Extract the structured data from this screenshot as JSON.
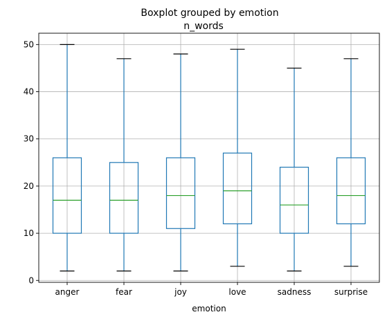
{
  "chart_data": {
    "type": "box",
    "suptitle": "Boxplot grouped by emotion",
    "title": "n_words",
    "xlabel": "emotion",
    "ylabel": "",
    "ylim": [
      -0.4,
      52.4
    ],
    "yticks": [
      0,
      10,
      20,
      30,
      40,
      50
    ],
    "grid": true,
    "colors": {
      "box": "#1f77b4",
      "median": "#2ca02c",
      "cap": "#000000",
      "grid": "#b0b0b0"
    },
    "categories": [
      "anger",
      "fear",
      "joy",
      "love",
      "sadness",
      "surprise"
    ],
    "boxes": [
      {
        "category": "anger",
        "min": 2,
        "q1": 10,
        "median": 17,
        "q3": 26,
        "max": 50
      },
      {
        "category": "fear",
        "min": 2,
        "q1": 10,
        "median": 17,
        "q3": 25,
        "max": 47
      },
      {
        "category": "joy",
        "min": 2,
        "q1": 11,
        "median": 18,
        "q3": 26,
        "max": 48
      },
      {
        "category": "love",
        "min": 3,
        "q1": 12,
        "median": 19,
        "q3": 27,
        "max": 49
      },
      {
        "category": "sadness",
        "min": 2,
        "q1": 10,
        "median": 16,
        "q3": 24,
        "max": 45
      },
      {
        "category": "surprise",
        "min": 3,
        "q1": 12,
        "median": 18,
        "q3": 26,
        "max": 47
      }
    ]
  }
}
